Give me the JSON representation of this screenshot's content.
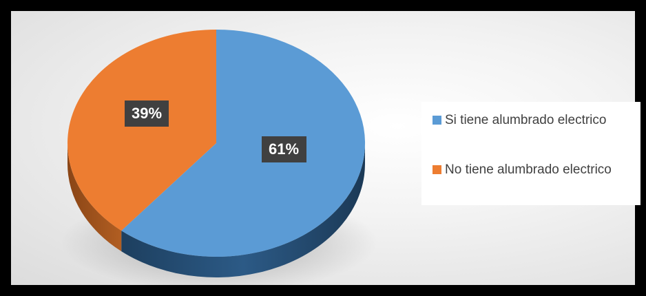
{
  "chart_data": {
    "type": "pie",
    "title": "",
    "slices": [
      {
        "label": "Si tiene alumbrado electrico",
        "value": 61,
        "display": "61%",
        "color": "#5b9bd5"
      },
      {
        "label": "No tiene alumbrado electrico",
        "value": 39,
        "display": "39%",
        "color": "#ed7d31"
      }
    ],
    "style": "3d",
    "legend_position": "right"
  }
}
